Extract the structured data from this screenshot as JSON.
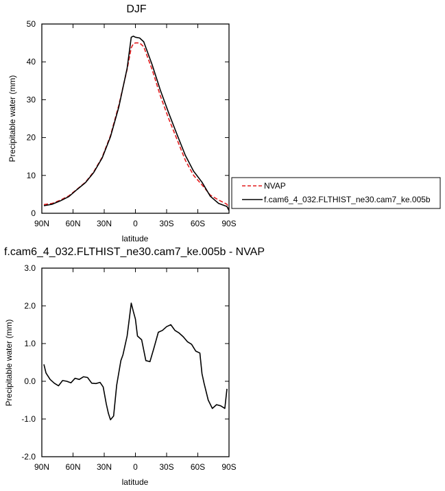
{
  "chart_data": [
    {
      "type": "line",
      "title": "DJF",
      "xlabel": "latitude",
      "ylabel": "Precipitable water (mm)",
      "xlim": [
        90,
        -90
      ],
      "ylim": [
        0,
        50
      ],
      "x_ticks": [
        90,
        60,
        30,
        0,
        -30,
        -60,
        -90
      ],
      "x_tick_labels": [
        "90N",
        "60N",
        "30N",
        "0",
        "30S",
        "60S",
        "90S"
      ],
      "y_ticks": [
        0,
        10,
        20,
        30,
        40,
        50
      ],
      "y_tick_labels": [
        "0",
        "10",
        "20",
        "30",
        "40",
        "50"
      ],
      "grid": false,
      "legend_placement": "right",
      "series": [
        {
          "name": "NVAP",
          "color": "#e41a1c",
          "dash": "dashed",
          "x": [
            88,
            80,
            72,
            64,
            56,
            48,
            40,
            32,
            24,
            16,
            8,
            4,
            2,
            0,
            -4,
            -8,
            -16,
            -24,
            -32,
            -40,
            -48,
            -56,
            -64,
            -72,
            -80,
            -88,
            -90
          ],
          "y": [
            2.3,
            2.6,
            3.5,
            4.6,
            6.4,
            8.2,
            11.0,
            14.8,
            20.5,
            28.5,
            38.0,
            43.7,
            44.8,
            45.0,
            45.0,
            44.0,
            38.0,
            31.0,
            25.0,
            19.5,
            14.0,
            10.0,
            7.5,
            4.8,
            3.5,
            2.4,
            1.2
          ]
        },
        {
          "name": "f.cam6_4_032.FLTHIST_ne30.cam7_ke.005b",
          "color": "#000000",
          "dash": "solid",
          "x": [
            88,
            80,
            72,
            64,
            56,
            48,
            40,
            32,
            24,
            16,
            8,
            4,
            2,
            0,
            -4,
            -8,
            -16,
            -24,
            -32,
            -40,
            -48,
            -56,
            -64,
            -72,
            -80,
            -88,
            -90
          ],
          "y": [
            2.0,
            2.4,
            3.3,
            4.4,
            6.3,
            8.1,
            10.8,
            14.6,
            20.2,
            28.0,
            38.3,
            46.5,
            46.8,
            46.5,
            46.3,
            45.3,
            39.3,
            32.5,
            26.5,
            20.8,
            15.3,
            11.1,
            8.2,
            4.5,
            2.6,
            1.8,
            0.7
          ]
        }
      ]
    },
    {
      "type": "line",
      "title": "f.cam6_4_032.FLTHIST_ne30.cam7_ke.005b - NVAP",
      "xlabel": "latitude",
      "ylabel": "Precipitable water (mm)",
      "xlim": [
        90,
        -90
      ],
      "ylim": [
        -2.0,
        3.0
      ],
      "x_ticks": [
        90,
        60,
        30,
        0,
        -30,
        -60,
        -90
      ],
      "x_tick_labels": [
        "90N",
        "60N",
        "30N",
        "0",
        "30S",
        "60S",
        "90S"
      ],
      "y_ticks": [
        -2.0,
        -1.0,
        0.0,
        1.0,
        2.0,
        3.0
      ],
      "y_tick_labels": [
        "-2.0",
        "-1.0",
        "0.0",
        "1.0",
        "2.0",
        "3.0"
      ],
      "grid": false,
      "series": [
        {
          "color": "#000000",
          "dash": "solid",
          "x": [
            88,
            86,
            82,
            78,
            74,
            70,
            66,
            62,
            58,
            54,
            50,
            46,
            42,
            38,
            34,
            31,
            28,
            26,
            24,
            21,
            18,
            14,
            12,
            8,
            6,
            4,
            2,
            0,
            -2,
            -6,
            -10,
            -14,
            -18,
            -22,
            -26,
            -30,
            -34,
            -38,
            -42,
            -46,
            -50,
            -54,
            -58,
            -62,
            -64,
            -66,
            -70,
            -74,
            -78,
            -82,
            -86,
            -88
          ],
          "y": [
            0.45,
            0.22,
            0.05,
            -0.05,
            -0.12,
            0.02,
            0.0,
            -0.04,
            0.08,
            0.05,
            0.12,
            0.1,
            -0.05,
            -0.06,
            -0.03,
            -0.15,
            -0.6,
            -0.85,
            -1.02,
            -0.92,
            -0.1,
            0.55,
            0.7,
            1.2,
            1.63,
            2.07,
            1.85,
            1.65,
            1.2,
            1.1,
            0.55,
            0.52,
            0.9,
            1.3,
            1.35,
            1.45,
            1.5,
            1.35,
            1.28,
            1.18,
            1.05,
            0.98,
            0.8,
            0.75,
            0.2,
            -0.05,
            -0.5,
            -0.72,
            -0.62,
            -0.65,
            -0.72,
            -0.2
          ]
        }
      ]
    }
  ]
}
